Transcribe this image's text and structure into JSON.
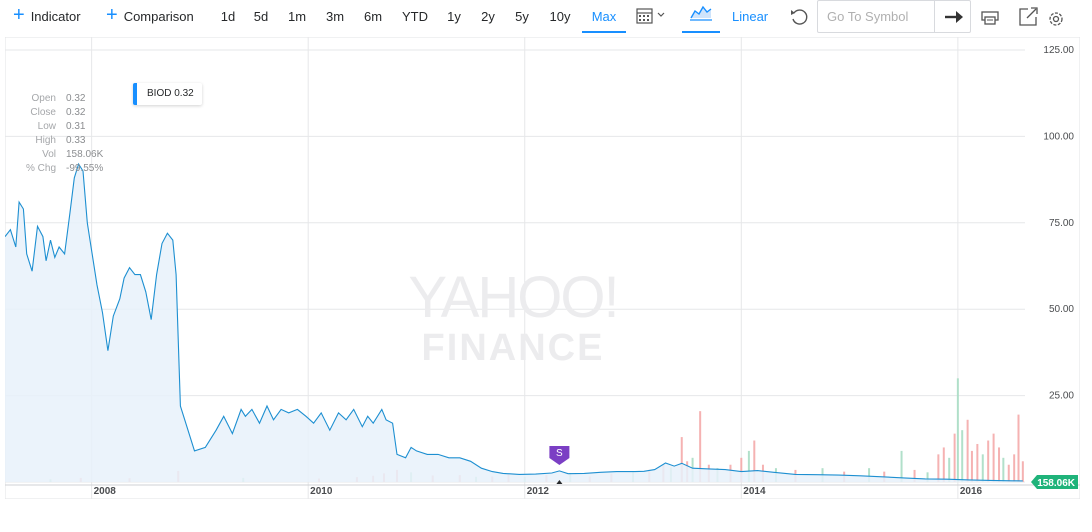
{
  "toolbar": {
    "indicator_label": "Indicator",
    "comparison_label": "Comparison",
    "ranges": [
      "1d",
      "5d",
      "1m",
      "3m",
      "6m",
      "YTD",
      "1y",
      "2y",
      "5y",
      "10y",
      "Max"
    ],
    "active_range": "Max",
    "scale_label": "Linear",
    "symbol_placeholder": "Go To Symbol",
    "icons": [
      "plus-icon",
      "calendar-icon",
      "chevron-down-icon",
      "area-chart-icon",
      "undo-icon",
      "arrow-right-icon",
      "print-icon",
      "share-icon",
      "settings-icon"
    ],
    "accent": "#188fff"
  },
  "ohlc": [
    {
      "label": "Open",
      "value": "0.32"
    },
    {
      "label": "Close",
      "value": "0.32"
    },
    {
      "label": "Low",
      "value": "0.31"
    },
    {
      "label": "High",
      "value": "0.33"
    },
    {
      "label": "Vol",
      "value": "158.06K"
    },
    {
      "label": "% Chg",
      "value": "-99.55%"
    }
  ],
  "legend_label": "BIOD 0.32",
  "watermark": {
    "line1": "YAHOO!",
    "line2": "FINANCE"
  },
  "split_marker_label": "S",
  "volume_badge": "158.06K",
  "chart_data": {
    "type": "area",
    "ticker": "BIOD",
    "x_labels": [
      "2008",
      "2010",
      "2012",
      "2014",
      "2016"
    ],
    "y_ticks": [
      "125.00",
      "100.00",
      "75.00",
      "50.00",
      "25.00",
      "0.00"
    ],
    "ylim": [
      0,
      125
    ],
    "xlim": [
      2007.2,
      2016.62
    ],
    "grid": true,
    "legend": "top-left",
    "colors": {
      "line": "#1d8fd1",
      "fill": "#e7f1fa",
      "vol_up": "#a8ddc4",
      "vol_down": "#f4aaaa",
      "marker": "#7b3fc4",
      "badge": "#1fb37a"
    },
    "price": [
      [
        2007.2,
        71
      ],
      [
        2007.25,
        73
      ],
      [
        2007.3,
        68
      ],
      [
        2007.33,
        81
      ],
      [
        2007.37,
        79
      ],
      [
        2007.4,
        66
      ],
      [
        2007.45,
        61
      ],
      [
        2007.5,
        74
      ],
      [
        2007.55,
        71
      ],
      [
        2007.58,
        64
      ],
      [
        2007.62,
        70
      ],
      [
        2007.66,
        65
      ],
      [
        2007.7,
        68
      ],
      [
        2007.75,
        66
      ],
      [
        2007.8,
        78
      ],
      [
        2007.84,
        88
      ],
      [
        2007.88,
        92
      ],
      [
        2007.92,
        90
      ],
      [
        2007.96,
        75
      ],
      [
        2008.0,
        67
      ],
      [
        2008.05,
        57
      ],
      [
        2008.1,
        49
      ],
      [
        2008.15,
        38
      ],
      [
        2008.2,
        48
      ],
      [
        2008.26,
        53
      ],
      [
        2008.3,
        59
      ],
      [
        2008.35,
        62
      ],
      [
        2008.4,
        60
      ],
      [
        2008.45,
        60
      ],
      [
        2008.5,
        55
      ],
      [
        2008.55,
        47
      ],
      [
        2008.6,
        60
      ],
      [
        2008.65,
        69
      ],
      [
        2008.7,
        72
      ],
      [
        2008.75,
        70
      ],
      [
        2008.78,
        60
      ],
      [
        2008.82,
        22
      ],
      [
        2008.88,
        16
      ],
      [
        2008.95,
        9
      ],
      [
        2009.05,
        10
      ],
      [
        2009.15,
        15
      ],
      [
        2009.22,
        19
      ],
      [
        2009.3,
        14
      ],
      [
        2009.38,
        21
      ],
      [
        2009.42,
        19
      ],
      [
        2009.48,
        21
      ],
      [
        2009.55,
        17
      ],
      [
        2009.62,
        22
      ],
      [
        2009.68,
        18
      ],
      [
        2009.75,
        21
      ],
      [
        2009.82,
        20
      ],
      [
        2009.9,
        21
      ],
      [
        2009.98,
        19
      ],
      [
        2010.05,
        17
      ],
      [
        2010.12,
        20
      ],
      [
        2010.2,
        15
      ],
      [
        2010.28,
        20
      ],
      [
        2010.35,
        18
      ],
      [
        2010.42,
        21
      ],
      [
        2010.5,
        16
      ],
      [
        2010.55,
        19
      ],
      [
        2010.6,
        17
      ],
      [
        2010.68,
        21
      ],
      [
        2010.72,
        18
      ],
      [
        2010.78,
        17
      ],
      [
        2010.82,
        8
      ],
      [
        2010.9,
        7
      ],
      [
        2010.95,
        10
      ],
      [
        2011.0,
        9
      ],
      [
        2011.1,
        8
      ],
      [
        2011.2,
        8
      ],
      [
        2011.3,
        7
      ],
      [
        2011.4,
        7
      ],
      [
        2011.5,
        6
      ],
      [
        2011.6,
        4
      ],
      [
        2011.7,
        3
      ],
      [
        2011.8,
        2.5
      ],
      [
        2011.95,
        2.2
      ],
      [
        2012.1,
        2.3
      ],
      [
        2012.25,
        2.6
      ],
      [
        2012.32,
        3.2
      ],
      [
        2012.4,
        2.4
      ],
      [
        2012.55,
        2.5
      ],
      [
        2012.7,
        2.8
      ],
      [
        2012.85,
        3.0
      ],
      [
        2013.0,
        3.0
      ],
      [
        2013.1,
        3.1
      ],
      [
        2013.2,
        3.6
      ],
      [
        2013.3,
        5.5
      ],
      [
        2013.38,
        4.6
      ],
      [
        2013.45,
        5.4
      ],
      [
        2013.55,
        4.0
      ],
      [
        2013.7,
        3.8
      ],
      [
        2013.85,
        3.6
      ],
      [
        2014.0,
        3.0
      ],
      [
        2014.15,
        3.3
      ],
      [
        2014.3,
        2.8
      ],
      [
        2014.5,
        2.2
      ],
      [
        2014.7,
        2.1
      ],
      [
        2014.9,
        2.0
      ],
      [
        2015.1,
        1.8
      ],
      [
        2015.3,
        1.5
      ],
      [
        2015.5,
        1.2
      ],
      [
        2015.7,
        0.9
      ],
      [
        2015.9,
        0.8
      ],
      [
        2016.1,
        0.6
      ],
      [
        2016.3,
        0.45
      ],
      [
        2016.5,
        0.35
      ],
      [
        2016.6,
        0.32
      ]
    ],
    "volume": [
      [
        2007.62,
        0.8,
        "up"
      ],
      [
        2007.9,
        1.2,
        "down"
      ],
      [
        2008.35,
        1.1,
        "down"
      ],
      [
        2008.8,
        3.2,
        "down"
      ],
      [
        2009.4,
        1.2,
        "up"
      ],
      [
        2010.1,
        1.0,
        "down"
      ],
      [
        2010.45,
        1.4,
        "down"
      ],
      [
        2010.6,
        1.8,
        "down"
      ],
      [
        2010.7,
        2.5,
        "down"
      ],
      [
        2010.82,
        3.5,
        "down"
      ],
      [
        2010.95,
        2.8,
        "up"
      ],
      [
        2011.15,
        1.9,
        "down"
      ],
      [
        2011.4,
        2.0,
        "down"
      ],
      [
        2011.55,
        1.5,
        "up"
      ],
      [
        2011.7,
        1.6,
        "down"
      ],
      [
        2011.85,
        2.4,
        "down"
      ],
      [
        2012.0,
        1.5,
        "up"
      ],
      [
        2012.2,
        2.0,
        "down"
      ],
      [
        2012.42,
        2.6,
        "up"
      ],
      [
        2012.6,
        1.6,
        "down"
      ],
      [
        2012.8,
        2.4,
        "down"
      ],
      [
        2013.0,
        3.0,
        "up"
      ],
      [
        2013.15,
        3.5,
        "down"
      ],
      [
        2013.28,
        5.0,
        "down"
      ],
      [
        2013.35,
        4.2,
        "up"
      ],
      [
        2013.45,
        13.0,
        "down"
      ],
      [
        2013.5,
        6.0,
        "down"
      ],
      [
        2013.55,
        7.0,
        "up"
      ],
      [
        2013.62,
        20.5,
        "down"
      ],
      [
        2013.7,
        5.0,
        "down"
      ],
      [
        2013.78,
        4.0,
        "up"
      ],
      [
        2013.9,
        5.0,
        "down"
      ],
      [
        2014.0,
        7.0,
        "down"
      ],
      [
        2014.07,
        9.0,
        "up"
      ],
      [
        2014.12,
        12.0,
        "down"
      ],
      [
        2014.2,
        5.0,
        "down"
      ],
      [
        2014.32,
        4.0,
        "up"
      ],
      [
        2014.5,
        3.5,
        "down"
      ],
      [
        2014.75,
        4.0,
        "up"
      ],
      [
        2014.95,
        3.0,
        "down"
      ],
      [
        2015.18,
        4.0,
        "up"
      ],
      [
        2015.32,
        3.0,
        "down"
      ],
      [
        2015.48,
        9.0,
        "up"
      ],
      [
        2015.6,
        3.5,
        "down"
      ],
      [
        2015.72,
        2.8,
        "up"
      ],
      [
        2015.82,
        8.0,
        "down"
      ],
      [
        2015.87,
        10.0,
        "down"
      ],
      [
        2015.92,
        7.0,
        "up"
      ],
      [
        2015.97,
        14.0,
        "down"
      ],
      [
        2016.0,
        30.0,
        "up"
      ],
      [
        2016.04,
        15.0,
        "up"
      ],
      [
        2016.09,
        18.0,
        "down"
      ],
      [
        2016.13,
        9.0,
        "down"
      ],
      [
        2016.18,
        11.0,
        "down"
      ],
      [
        2016.23,
        8.0,
        "up"
      ],
      [
        2016.28,
        12.0,
        "down"
      ],
      [
        2016.33,
        14.0,
        "down"
      ],
      [
        2016.38,
        10.0,
        "down"
      ],
      [
        2016.42,
        7.0,
        "up"
      ],
      [
        2016.47,
        5.0,
        "down"
      ],
      [
        2016.52,
        8.0,
        "down"
      ],
      [
        2016.56,
        19.5,
        "down"
      ],
      [
        2016.6,
        6.0,
        "down"
      ]
    ]
  }
}
